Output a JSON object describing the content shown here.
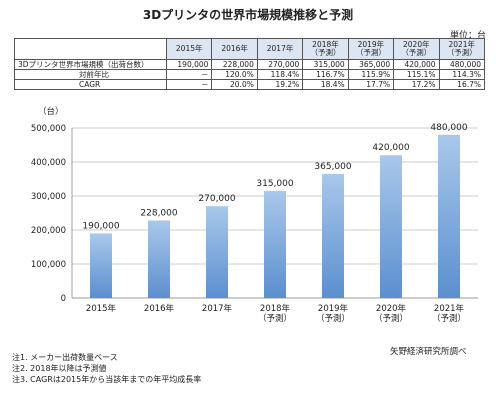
{
  "title": "3Dプリンタの世界市場規模推移と予測",
  "unit": "単位：台",
  "table": {
    "headers": [
      "2015年",
      "2016年",
      "2017年",
      "2018年\n（予測）",
      "2019年\n（予測）",
      "2020年\n（予測）",
      "2021年\n（予測）"
    ],
    "rows": [
      {
        "label": "3Dプリンタ世界市場規模（出荷台数）",
        "indent": false,
        "values": [
          "190,000",
          "228,000",
          "270,000",
          "315,000",
          "365,000",
          "420,000",
          "480,000"
        ]
      },
      {
        "label": "対前年比",
        "indent": true,
        "values": [
          "－",
          "120.0%",
          "118.4%",
          "116.7%",
          "115.9%",
          "115.1%",
          "114.3%"
        ]
      },
      {
        "label": "CAGR",
        "indent": true,
        "values": [
          "－",
          "20.0%",
          "19.2%",
          "18.4%",
          "17.7%",
          "17.2%",
          "16.7%"
        ]
      }
    ]
  },
  "chart_data": {
    "type": "bar",
    "ylabel": "（台）",
    "categories": [
      "2015年",
      "2016年",
      "2017年",
      "2018年\n（予測）",
      "2019年\n（予測）",
      "2020年\n（予測）",
      "2021年\n（予測）"
    ],
    "values": [
      190000,
      228000,
      270000,
      315000,
      365000,
      420000,
      480000
    ],
    "data_labels": [
      "190,000",
      "228,000",
      "270,000",
      "315,000",
      "365,000",
      "420,000",
      "480,000"
    ],
    "ylim": [
      0,
      500000
    ],
    "yticks": [
      0,
      100000,
      200000,
      300000,
      400000,
      500000
    ],
    "ytick_labels": [
      "0",
      "100,000",
      "200,000",
      "300,000",
      "400,000",
      "500,000"
    ],
    "grid": true,
    "bar_color_top": "#a9c8ea",
    "bar_color_bottom": "#5b8fcf"
  },
  "notes": [
    "注1. メーカー出荷数量ベース",
    "注2. 2018年以降は予測値",
    "注3. CAGRは2015年から当該年までの年平均成長率"
  ],
  "source": "矢野経済研究所調べ"
}
